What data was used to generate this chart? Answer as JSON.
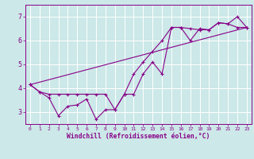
{
  "title": "",
  "xlabel": "Windchill (Refroidissement éolien,°C)",
  "background_color": "#cce8e8",
  "grid_color": "#ffffff",
  "line_color": "#880088",
  "xlim": [
    -0.5,
    23.5
  ],
  "ylim": [
    2.5,
    7.5
  ],
  "yticks": [
    3,
    4,
    5,
    6,
    7
  ],
  "xticks": [
    0,
    1,
    2,
    3,
    4,
    5,
    6,
    7,
    8,
    9,
    10,
    11,
    12,
    13,
    14,
    15,
    16,
    17,
    18,
    19,
    20,
    21,
    22,
    23
  ],
  "series1_x": [
    0,
    1,
    2,
    3,
    4,
    5,
    6,
    7,
    8,
    9,
    10,
    11,
    12,
    13,
    14,
    15,
    16,
    17,
    18,
    19,
    20,
    21,
    22,
    23
  ],
  "series1_y": [
    4.15,
    3.85,
    3.6,
    2.85,
    3.25,
    3.3,
    3.55,
    2.7,
    3.1,
    3.1,
    3.75,
    3.75,
    4.6,
    5.1,
    4.6,
    6.55,
    6.55,
    6.0,
    6.5,
    6.45,
    6.75,
    6.7,
    7.0,
    6.55
  ],
  "series2_x": [
    0,
    1,
    2,
    3,
    4,
    5,
    6,
    7,
    8,
    9,
    10,
    11,
    12,
    13,
    14,
    15,
    16,
    17,
    18,
    19,
    20,
    21,
    22,
    23
  ],
  "series2_y": [
    4.15,
    3.85,
    3.75,
    3.75,
    3.75,
    3.75,
    3.75,
    3.75,
    3.75,
    3.1,
    3.75,
    4.6,
    5.1,
    5.55,
    6.0,
    6.55,
    6.55,
    6.5,
    6.45,
    6.45,
    6.75,
    6.7,
    6.55,
    6.55
  ],
  "series3_x": [
    0,
    23
  ],
  "series3_y": [
    4.15,
    6.55
  ]
}
